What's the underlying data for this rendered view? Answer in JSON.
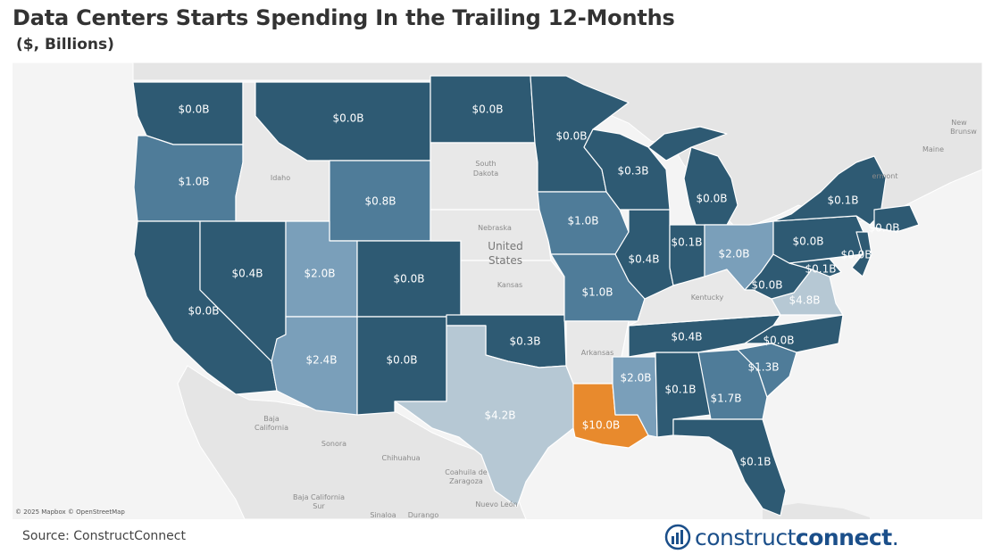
{
  "header": {
    "title": "Data Centers Starts Spending In the Trailing 12-Months",
    "subtitle": "($, Billions)"
  },
  "footer": {
    "source": "Source: ConstructConnect",
    "brand_regular": "construct",
    "brand_bold": "connect",
    "brand_suffix": "."
  },
  "map": {
    "attribution": "© 2025 Mapbox © OpenStreetMap",
    "country_label_line1": "United",
    "country_label_line2": "States",
    "basemap_labels": {
      "south_dakota_1": "South",
      "south_dakota_2": "Dakota",
      "nebraska": "Nebraska",
      "kansas": "Kansas",
      "idaho": "Idaho",
      "arkansas": "Arkansas",
      "kentucky": "Kentucky",
      "vermont": "ermont",
      "maine": "Maine",
      "new_brunswick_1": "New",
      "new_brunswick_2": "Brunsw",
      "baja_california_sur_1": "Baja",
      "baja_california_sur_2": "California",
      "baja_california_sur_3": "Sur",
      "sonora": "Sonora",
      "chihuahua": "Chihuahua",
      "coahuila_1": "Coahuila de",
      "coahuila_2": "Zaragoza",
      "baja_california_1": "Baja California",
      "baja_california_2": "Sur",
      "sinaloa": "Sinaloa",
      "durango": "Durango",
      "nuevo_leon": "Nuevo León"
    },
    "colors": {
      "high": "#e88a2d",
      "dark": "#2e5a73",
      "mid": "#4f7c99",
      "light": "#7a9fba",
      "pale": "#b6c8d4",
      "no_data": "#e8e8e8",
      "water": "#f4f4f4",
      "land": "#e5e5e5"
    },
    "states": {
      "WA": {
        "label": "$0.0B",
        "value": 0.0
      },
      "OR": {
        "label": "$1.0B",
        "value": 1.0
      },
      "CA": {
        "label": "$0.0B",
        "value": 0.0
      },
      "NV": {
        "label": "$0.4B",
        "value": 0.4
      },
      "MT": {
        "label": "$0.0B",
        "value": 0.0
      },
      "WY": {
        "label": "$0.8B",
        "value": 0.8
      },
      "UT": {
        "label": "$2.0B",
        "value": 2.0
      },
      "CO": {
        "label": "$0.0B",
        "value": 0.0
      },
      "AZ": {
        "label": "$2.4B",
        "value": 2.4
      },
      "NM": {
        "label": "$0.0B",
        "value": 0.0
      },
      "ND": {
        "label": "$0.0B",
        "value": 0.0
      },
      "MN": {
        "label": "$0.0B",
        "value": 0.0
      },
      "WI": {
        "label": "$0.3B",
        "value": 0.3
      },
      "IA": {
        "label": "$1.0B",
        "value": 1.0
      },
      "MO": {
        "label": "$1.0B",
        "value": 1.0
      },
      "OK": {
        "label": "$0.3B",
        "value": 0.3
      },
      "TX": {
        "label": "$4.2B",
        "value": 4.2
      },
      "LA": {
        "label": "$10.0B",
        "value": 10.0
      },
      "MS": {
        "label": "$2.0B",
        "value": 2.0
      },
      "AL": {
        "label": "$0.1B",
        "value": 0.1
      },
      "GA": {
        "label": "$1.7B",
        "value": 1.7
      },
      "FL": {
        "label": "$0.1B",
        "value": 0.1
      },
      "SC": {
        "label": "$1.3B",
        "value": 1.3
      },
      "NC": {
        "label": "$0.0B",
        "value": 0.0
      },
      "TN": {
        "label": "$0.4B",
        "value": 0.4
      },
      "VA": {
        "label": "$4.8B",
        "value": 4.8
      },
      "WV": {
        "label": "$0.0B",
        "value": 0.0
      },
      "IL": {
        "label": "$0.4B",
        "value": 0.4
      },
      "IN": {
        "label": "$0.1B",
        "value": 0.1
      },
      "MI": {
        "label": "$0.0B",
        "value": 0.0
      },
      "OH": {
        "label": "$2.0B",
        "value": 2.0
      },
      "PA": {
        "label": "$0.0B",
        "value": 0.0
      },
      "NY": {
        "label": "$0.1B",
        "value": 0.1
      },
      "MD": {
        "label": "$0.1B",
        "value": 0.1
      },
      "NJ": {
        "label": "$0.0B",
        "value": 0.0
      },
      "MA": {
        "label": "$0.0B",
        "value": 0.0
      }
    }
  }
}
